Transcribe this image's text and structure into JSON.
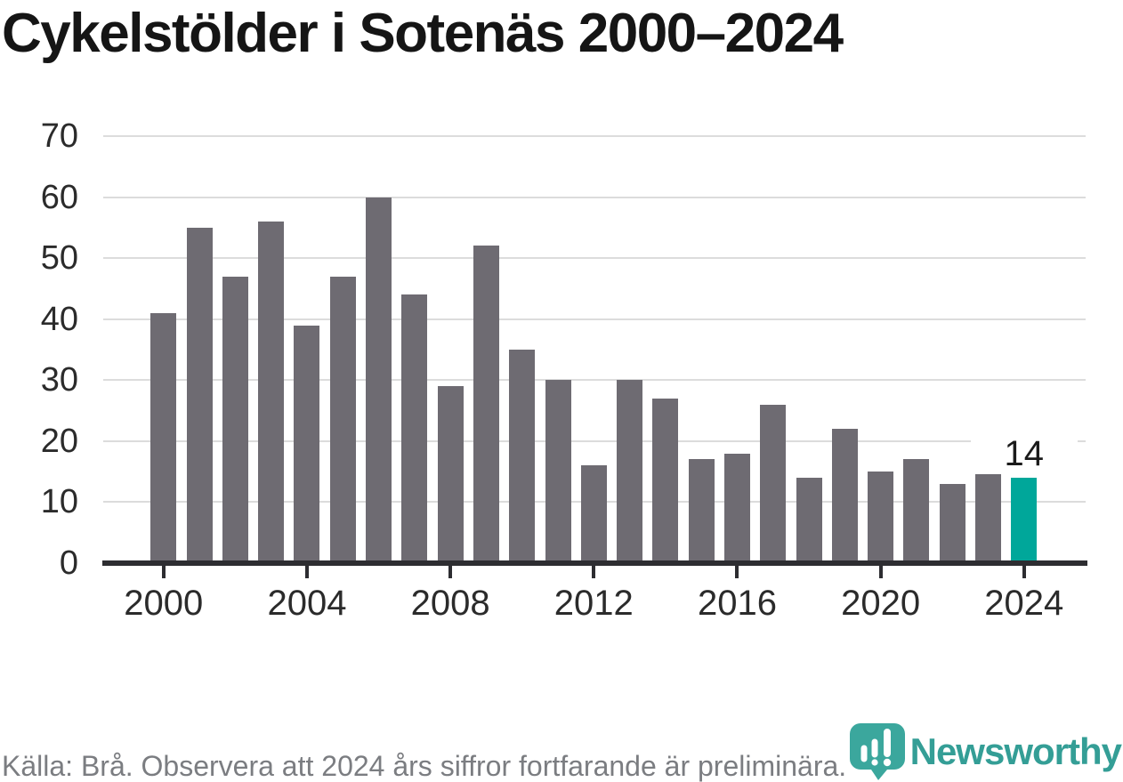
{
  "title": "Cykelstölder i Sotenäs 2000–2024",
  "chart_data": {
    "type": "bar",
    "title": "Cykelstölder i Sotenäs 2000–2024",
    "x": [
      2000,
      2001,
      2002,
      2003,
      2004,
      2005,
      2006,
      2007,
      2008,
      2009,
      2010,
      2011,
      2012,
      2013,
      2014,
      2015,
      2016,
      2017,
      2018,
      2019,
      2020,
      2021,
      2022,
      2023,
      2024
    ],
    "values": [
      41,
      55,
      47,
      56,
      39,
      47,
      60,
      44,
      29,
      52,
      35,
      30,
      16,
      30,
      27,
      17,
      18,
      26,
      14,
      22,
      15,
      17,
      13,
      17,
      14
    ],
    "xlabel": "",
    "ylabel": "",
    "ylim": [
      0,
      70
    ],
    "yticks": [
      0,
      10,
      20,
      30,
      40,
      50,
      60,
      70
    ],
    "xticks": [
      2000,
      2004,
      2008,
      2012,
      2016,
      2020,
      2024
    ],
    "grid": "horizontal",
    "legend": "none",
    "highlight_year": 2024,
    "annotation": {
      "year": 2024,
      "label": "14"
    },
    "bar_color": "#6e6b72",
    "highlight_color": "#00a79a"
  },
  "footer": {
    "source": "Källa: Brå. Observera att 2024 års siffror fortfarande är preliminära."
  },
  "logo": {
    "wordmark": "Newsworthy",
    "icon": "newsworthy-pin-barchart-icon",
    "pin_color": "#3ba79d",
    "wordmark_color": "#349e96"
  }
}
